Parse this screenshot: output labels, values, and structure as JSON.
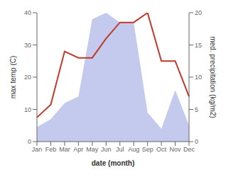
{
  "chart_data": {
    "type": "line",
    "categories": [
      "Jan",
      "Feb",
      "Mar",
      "Apr",
      "May",
      "Jun",
      "Jul",
      "Aug",
      "Sep",
      "Oct",
      "Nov",
      "Dec"
    ],
    "xlabel": "date (month)",
    "ylabel": "max temp (C)",
    "y2label": "med. precipitation (kg/m2)",
    "ylim": [
      0,
      40
    ],
    "yticks": [
      0,
      10,
      20,
      30,
      40
    ],
    "y2lim": [
      0,
      20
    ],
    "y2ticks": [
      0,
      5,
      10,
      15,
      20
    ],
    "series": [
      {
        "type": "area",
        "color": "#b0b8e8",
        "values": [
          4.5,
          7,
          12,
          14,
          38,
          40,
          37,
          37,
          9,
          4,
          16,
          5
        ]
      },
      {
        "type": "line",
        "color": "#c0392b",
        "values": [
          7.5,
          11.5,
          28,
          26,
          26,
          32,
          37,
          37,
          40,
          25,
          25,
          14
        ]
      }
    ]
  }
}
